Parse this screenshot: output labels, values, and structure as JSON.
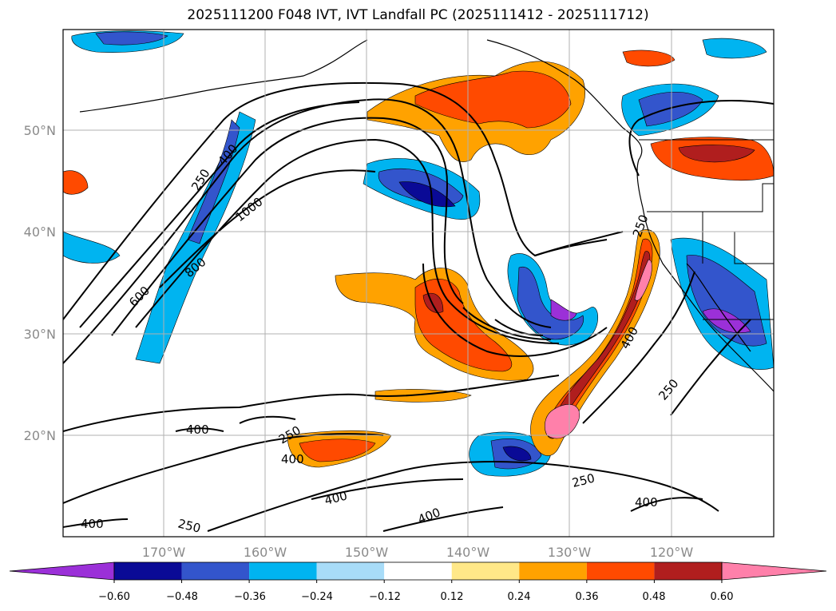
{
  "title": "2025111200 F048 IVT, IVT Landfall PC (2025111412 - 2025111712)",
  "axes": {
    "lat_ticks": [
      "50°N",
      "40°N",
      "30°N",
      "20°N"
    ],
    "lon_ticks": [
      "170°W",
      "160°W",
      "150°W",
      "140°W",
      "130°W",
      "120°W"
    ]
  },
  "colorbar": {
    "colors": [
      "#9b30d8",
      "#0a0a96",
      "#3355cc",
      "#00b4f0",
      "#a8dcf8",
      "#ffffff",
      "#ffe888",
      "#ffa200",
      "#ff4a00",
      "#b01e1e",
      "#ff80aa"
    ],
    "ticks": [
      "−0.60",
      "−0.48",
      "−0.36",
      "−0.24",
      "−0.12",
      "0.12",
      "0.24",
      "0.36",
      "0.48",
      "0.60"
    ]
  },
  "contour_labels": [
    "250",
    "400",
    "1000",
    "800",
    "600",
    "400",
    "400",
    "400",
    "400",
    "250",
    "400",
    "250",
    "400",
    "250",
    "250",
    "250",
    "400"
  ]
}
